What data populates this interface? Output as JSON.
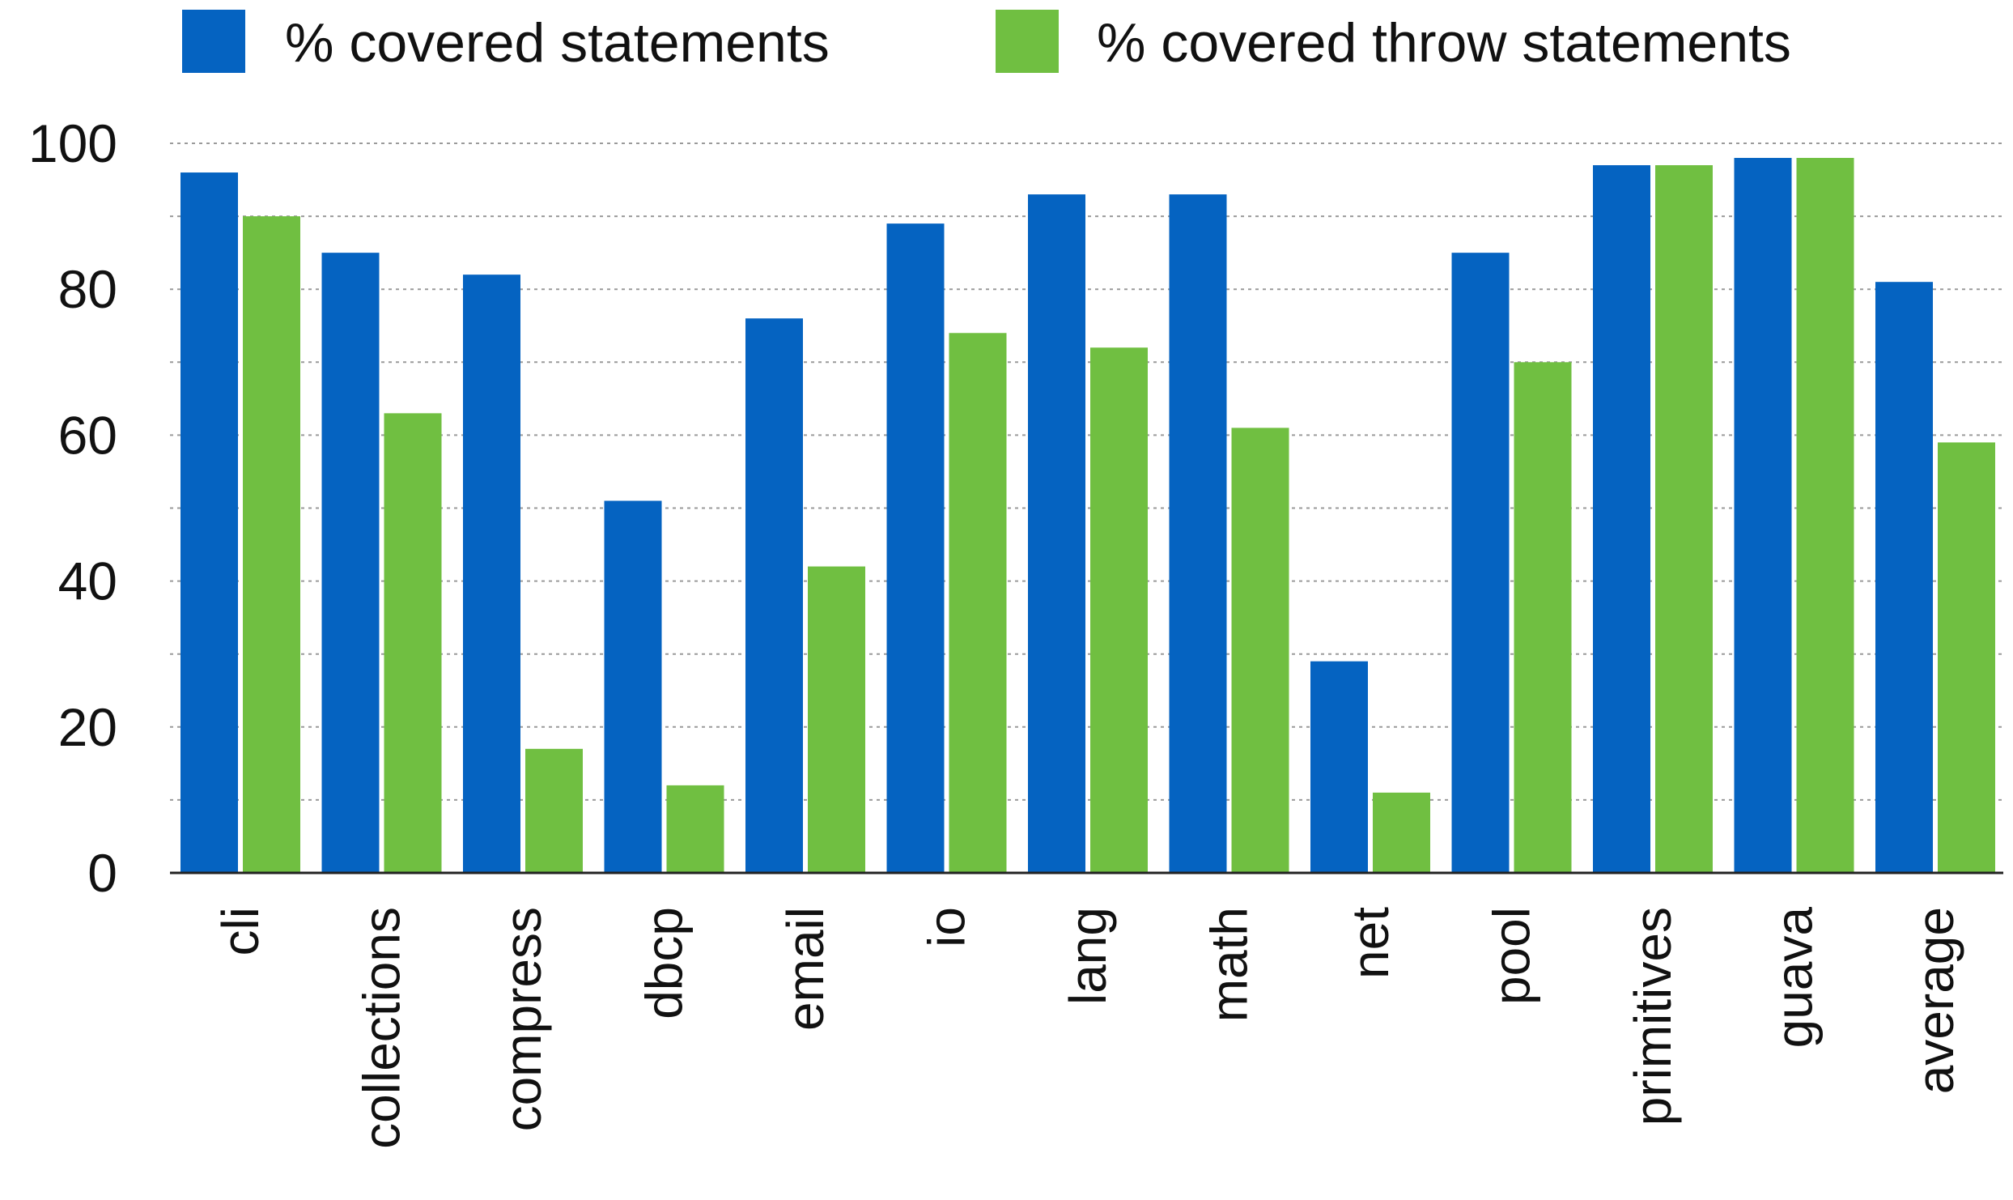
{
  "chart_data": {
    "type": "bar",
    "categories": [
      "cli",
      "collections",
      "compress",
      "dbcp",
      "email",
      "io",
      "lang",
      "math",
      "net",
      "pool",
      "primitives",
      "guava",
      "average"
    ],
    "series": [
      {
        "name": "% covered statements",
        "color": "#0563c1",
        "values": [
          96,
          85,
          82,
          51,
          76,
          89,
          93,
          93,
          29,
          85,
          97,
          98,
          81
        ]
      },
      {
        "name": "% covered throw statements",
        "color": "#70bf41",
        "values": [
          90,
          63,
          17,
          12,
          42,
          74,
          72,
          61,
          11,
          70,
          97,
          98,
          59
        ]
      }
    ],
    "ylim": [
      0,
      100
    ],
    "yticks": [
      0,
      20,
      40,
      60,
      80,
      100
    ],
    "grid": true,
    "legend_position": "top",
    "title": "",
    "xlabel": "",
    "ylabel": ""
  }
}
